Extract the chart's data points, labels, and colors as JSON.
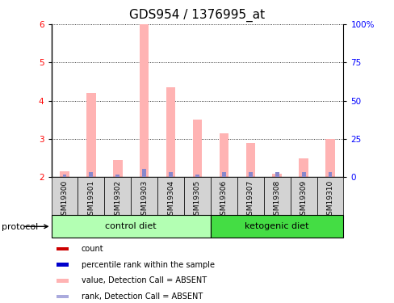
{
  "title": "GDS954 / 1376995_at",
  "samples": [
    "GSM19300",
    "GSM19301",
    "GSM19302",
    "GSM19303",
    "GSM19304",
    "GSM19305",
    "GSM19306",
    "GSM19307",
    "GSM19308",
    "GSM19309",
    "GSM19310"
  ],
  "pink_values": [
    2.15,
    4.2,
    2.45,
    6.0,
    4.35,
    3.5,
    3.15,
    2.9,
    2.1,
    2.5,
    3.0
  ],
  "blue_values": [
    2.07,
    2.13,
    2.07,
    2.22,
    2.13,
    2.07,
    2.13,
    2.13,
    2.13,
    2.13,
    2.13
  ],
  "ylim_left": [
    2.0,
    6.0
  ],
  "ylim_right": [
    0,
    100
  ],
  "yticks_left": [
    2,
    3,
    4,
    5,
    6
  ],
  "yticks_right": [
    0,
    25,
    50,
    75,
    100
  ],
  "ytick_labels_right": [
    "0",
    "25",
    "50",
    "75",
    "100%"
  ],
  "groups": [
    {
      "label": "control diet",
      "n_samples": 6,
      "color": "#b3ffb3"
    },
    {
      "label": "ketogenic diet",
      "n_samples": 5,
      "color": "#44dd44"
    }
  ],
  "group_row_label": "protocol",
  "pink_bar_width": 0.35,
  "blue_bar_width": 0.15,
  "pink_color": "#ffb3b3",
  "blue_color": "#8888cc",
  "sample_box_color": "#d3d3d3",
  "legend_items": [
    {
      "color": "#cc0000",
      "label": "count"
    },
    {
      "color": "#0000cc",
      "label": "percentile rank within the sample"
    },
    {
      "color": "#ffb3b3",
      "label": "value, Detection Call = ABSENT"
    },
    {
      "color": "#aaaadd",
      "label": "rank, Detection Call = ABSENT"
    }
  ],
  "title_fontsize": 11,
  "tick_fontsize": 7.5,
  "sample_fontsize": 6.5,
  "legend_fontsize": 7,
  "group_fontsize": 8
}
